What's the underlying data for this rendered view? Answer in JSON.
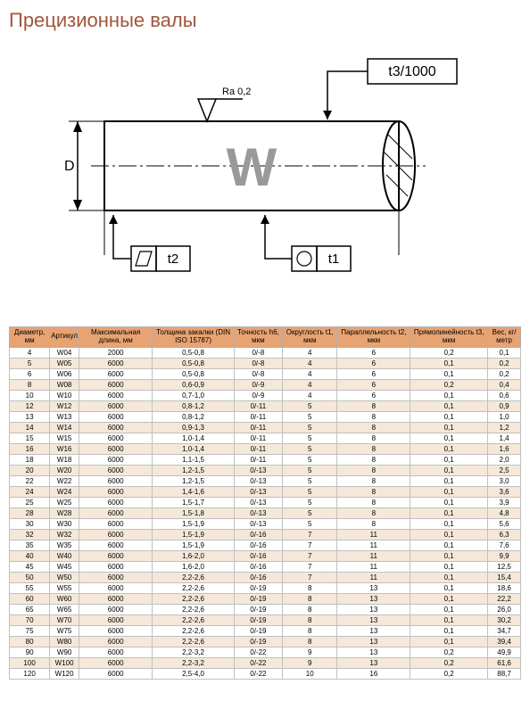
{
  "title": "Прецизионные валы",
  "diagram": {
    "center_letter": "W",
    "ra_label": "Ra 0,2",
    "d_label": "D",
    "t1_label": "t1",
    "t2_label": "t2",
    "t3_label": "t3/1000"
  },
  "table": {
    "headers": [
      "Диаметр, мм",
      "Артикул",
      "Максимальная длина, мм",
      "Толщина закалки (DIN ISO 15787)",
      "Точность h6, мкм",
      "Округлость t1, мкм",
      "Параллельность t2, мкм",
      "Прямолинейность t3, мкм",
      "Вес, кг/метр"
    ],
    "rows": [
      [
        "4",
        "W04",
        "2000",
        "0,5-0,8",
        "0/-8",
        "4",
        "6",
        "0,2",
        "0,1"
      ],
      [
        "5",
        "W05",
        "6000",
        "0,5-0,8",
        "0/-8",
        "4",
        "6",
        "0,1",
        "0,2"
      ],
      [
        "6",
        "W06",
        "6000",
        "0,5-0,8",
        "0/-8",
        "4",
        "6",
        "0,1",
        "0,2"
      ],
      [
        "8",
        "W08",
        "6000",
        "0,6-0,9",
        "0/-9",
        "4",
        "6",
        "0,2",
        "0,4"
      ],
      [
        "10",
        "W10",
        "6000",
        "0,7-1,0",
        "0/-9",
        "4",
        "6",
        "0,1",
        "0,6"
      ],
      [
        "12",
        "W12",
        "6000",
        "0,8-1,2",
        "0/-11",
        "5",
        "8",
        "0,1",
        "0,9"
      ],
      [
        "13",
        "W13",
        "6000",
        "0,8-1,2",
        "0/-11",
        "5",
        "8",
        "0,1",
        "1,0"
      ],
      [
        "14",
        "W14",
        "6000",
        "0,9-1,3",
        "0/-11",
        "5",
        "8",
        "0,1",
        "1,2"
      ],
      [
        "15",
        "W15",
        "6000",
        "1,0-1,4",
        "0/-11",
        "5",
        "8",
        "0,1",
        "1,4"
      ],
      [
        "16",
        "W16",
        "6000",
        "1,0-1,4",
        "0/-11",
        "5",
        "8",
        "0,1",
        "1,6"
      ],
      [
        "18",
        "W18",
        "6000",
        "1,1-1,5",
        "0/-11",
        "5",
        "8",
        "0,1",
        "2,0"
      ],
      [
        "20",
        "W20",
        "6000",
        "1,2-1,5",
        "0/-13",
        "5",
        "8",
        "0,1",
        "2,5"
      ],
      [
        "22",
        "W22",
        "6000",
        "1,2-1,5",
        "0/-13",
        "5",
        "8",
        "0,1",
        "3,0"
      ],
      [
        "24",
        "W24",
        "6000",
        "1,4-1,6",
        "0/-13",
        "5",
        "8",
        "0,1",
        "3,6"
      ],
      [
        "25",
        "W25",
        "6000",
        "1,5-1,7",
        "0/-13",
        "5",
        "8",
        "0,1",
        "3,9"
      ],
      [
        "28",
        "W28",
        "6000",
        "1,5-1,8",
        "0/-13",
        "5",
        "8",
        "0,1",
        "4,8"
      ],
      [
        "30",
        "W30",
        "6000",
        "1,5-1,9",
        "0/-13",
        "5",
        "8",
        "0,1",
        "5,6"
      ],
      [
        "32",
        "W32",
        "6000",
        "1,5-1,9",
        "0/-16",
        "7",
        "11",
        "0,1",
        "6,3"
      ],
      [
        "35",
        "W35",
        "6000",
        "1,5-1,9",
        "0/-16",
        "7",
        "11",
        "0,1",
        "7,6"
      ],
      [
        "40",
        "W40",
        "6000",
        "1,6-2,0",
        "0/-16",
        "7",
        "11",
        "0,1",
        "9,9"
      ],
      [
        "45",
        "W45",
        "6000",
        "1,6-2,0",
        "0/-16",
        "7",
        "11",
        "0,1",
        "12,5"
      ],
      [
        "50",
        "W50",
        "6000",
        "2,2-2,6",
        "0/-16",
        "7",
        "11",
        "0,1",
        "15,4"
      ],
      [
        "55",
        "W55",
        "6000",
        "2,2-2,6",
        "0/-19",
        "8",
        "13",
        "0,1",
        "18,6"
      ],
      [
        "60",
        "W60",
        "6000",
        "2,2-2,6",
        "0/-19",
        "8",
        "13",
        "0,1",
        "22,2"
      ],
      [
        "65",
        "W65",
        "6000",
        "2,2-2,6",
        "0/-19",
        "8",
        "13",
        "0,1",
        "26,0"
      ],
      [
        "70",
        "W70",
        "6000",
        "2,2-2,6",
        "0/-19",
        "8",
        "13",
        "0,1",
        "30,2"
      ],
      [
        "75",
        "W75",
        "6000",
        "2,2-2,6",
        "0/-19",
        "8",
        "13",
        "0,1",
        "34,7"
      ],
      [
        "80",
        "W80",
        "6000",
        "2,2-2,6",
        "0/-19",
        "8",
        "13",
        "0,1",
        "39,4"
      ],
      [
        "90",
        "W90",
        "6000",
        "2,2-3,2",
        "0/-22",
        "9",
        "13",
        "0,2",
        "49,9"
      ],
      [
        "100",
        "W100",
        "6000",
        "2,2-3,2",
        "0/-22",
        "9",
        "13",
        "0,2",
        "61,6"
      ],
      [
        "120",
        "W120",
        "6000",
        "2,5-4,0",
        "0/-22",
        "10",
        "16",
        "0,2",
        "88,7"
      ]
    ]
  }
}
